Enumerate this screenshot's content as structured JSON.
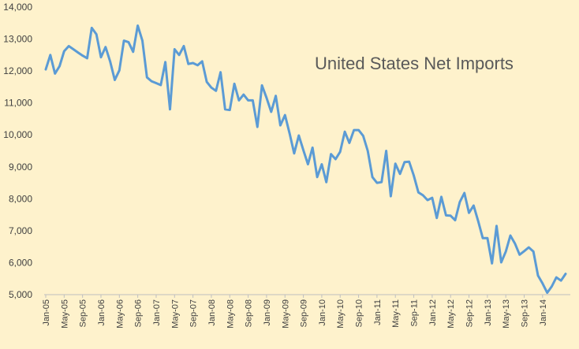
{
  "chart_data": {
    "type": "line",
    "title": "United States Net Imports",
    "xlabel": "",
    "ylabel": "",
    "ylim": [
      5000,
      14000
    ],
    "yticks": [
      "5,000",
      "6,000",
      "7,000",
      "8,000",
      "9,000",
      "10,000",
      "11,000",
      "12,000",
      "13,000",
      "14,000"
    ],
    "xticks": [
      "Jan-05",
      "May-05",
      "Sep-05",
      "Jan-06",
      "May-06",
      "Sep-06",
      "Jan-07",
      "May-07",
      "Sep-07",
      "Jan-08",
      "May-08",
      "Sep-08",
      "Jan-09",
      "May-09",
      "Sep-09",
      "Jan-10",
      "May-10",
      "Sep-10",
      "Jan-11",
      "May-11",
      "Sep-11",
      "Jan-12",
      "May-12",
      "Sep-12",
      "Jan-13",
      "May-13",
      "Sep-13",
      "Jan-14"
    ],
    "grid": false,
    "legend": "none",
    "line_color": "#5B9BD5",
    "series": [
      {
        "values": [
          12050,
          12500,
          11920,
          12150,
          12620,
          12780,
          12680,
          12580,
          12480,
          12400,
          13350,
          13150,
          12430,
          12750,
          12300,
          11720,
          12020,
          12950,
          12900,
          12600,
          13420,
          12950,
          11800,
          11680,
          11620,
          11560,
          12280,
          10800,
          12680,
          12500,
          12780,
          12220,
          12250,
          12180,
          12300,
          11660,
          11480,
          11380,
          11960,
          10800,
          10780,
          11600,
          11080,
          11260,
          11080,
          11080,
          10250,
          11550,
          11160,
          10720,
          11220,
          10300,
          10620,
          10050,
          9420,
          9980,
          9520,
          9080,
          9600,
          8680,
          9080,
          8520,
          9400,
          9240,
          9470,
          10100,
          9750,
          10150,
          10150,
          9970,
          9500,
          8680,
          8500,
          8520,
          9500,
          8080,
          9100,
          8780,
          9150,
          9160,
          8730,
          8200,
          8110,
          7960,
          8030,
          7400,
          8060,
          7480,
          7470,
          7330,
          7900,
          8180,
          7560,
          7790,
          7300,
          6770,
          6770,
          5980,
          7150,
          6010,
          6350,
          6850,
          6600,
          6250,
          6360,
          6480,
          6350,
          5600,
          5350,
          5060,
          5260,
          5540,
          5440,
          5650
        ]
      }
    ]
  }
}
